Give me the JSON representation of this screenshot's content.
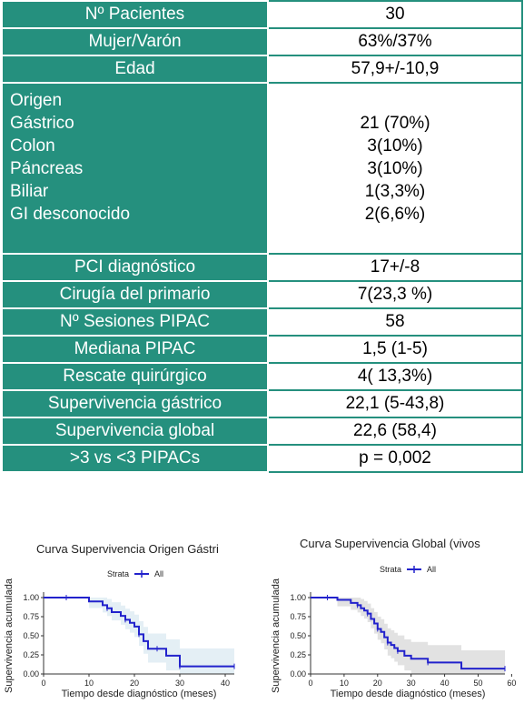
{
  "table": {
    "rows": [
      {
        "label": "Nº Pacientes",
        "value": "30"
      },
      {
        "label": "Mujer/Varón",
        "value": "63%/37%"
      },
      {
        "label": "Edad",
        "value": "57,9+/-10,9"
      }
    ],
    "origin": {
      "labels": [
        "Origen",
        "Gástrico",
        "Colon",
        "Páncreas",
        "Biliar",
        "GI desconocido"
      ],
      "values": [
        "",
        "21 (70%)",
        "3(10%)",
        "3(10%)",
        "1(3,3%)",
        "2(6,6%)"
      ]
    },
    "rows2": [
      {
        "label": "PCI diagnóstico",
        "value": "17+/-8"
      },
      {
        "label": "Cirugía del primario",
        "value": "7(23,3 %)"
      },
      {
        "label": "Nº Sesiones PIPAC",
        "value": "58"
      },
      {
        "label": "Mediana PIPAC",
        "value": "1,5 (1-5)"
      },
      {
        "label": "Rescate quirúrgico",
        "value": "4( 13,3%)"
      },
      {
        "label": "Supervivencia gástrico",
        "value": "22,1 (5-43,8)"
      },
      {
        "label": "Supervivencia global",
        "value": "22,6 (58,4)"
      },
      {
        "label": ">3 vs <3 PIPACs",
        "value": "p = 0,002"
      }
    ]
  },
  "chart_data": [
    {
      "type": "line",
      "title": "Curva Supervivencia Origen Gástri",
      "xlabel": "Tiempo desde diagnóstico (meses)",
      "ylabel": "Supervivencia acumulada",
      "legend_title": "Strata",
      "series": [
        {
          "name": "All",
          "x": [
            0,
            5,
            10,
            13,
            14,
            15,
            17,
            18,
            19,
            20,
            21,
            22,
            23,
            25,
            27,
            29,
            30,
            42
          ],
          "y": [
            1.0,
            1.0,
            0.95,
            0.9,
            0.86,
            0.81,
            0.76,
            0.71,
            0.67,
            0.62,
            0.52,
            0.43,
            0.33,
            0.33,
            0.24,
            0.24,
            0.1,
            0.1
          ]
        }
      ],
      "color": "#2222cc",
      "xlim": [
        0,
        42
      ],
      "ylim": [
        0,
        1
      ],
      "xticks": [
        "0",
        "10",
        "20",
        "30",
        "40"
      ],
      "yticks": [
        "0.00",
        "0.25",
        "0.50",
        "0.75",
        "1.00"
      ]
    },
    {
      "type": "line",
      "title": "Curva Supervivencia Global (vivos",
      "xlabel": "Tiempo desde diagnóstico (meses)",
      "ylabel": "Supervivencia acumulada",
      "legend_title": "Strata",
      "series": [
        {
          "name": "All",
          "x": [
            0,
            5,
            8,
            12,
            14,
            15,
            16,
            17,
            18,
            19,
            20,
            21,
            22,
            23,
            24,
            25,
            26,
            28,
            30,
            35,
            40,
            45,
            58
          ],
          "y": [
            1.0,
            1.0,
            0.97,
            0.93,
            0.9,
            0.86,
            0.83,
            0.79,
            0.72,
            0.66,
            0.59,
            0.55,
            0.48,
            0.41,
            0.38,
            0.34,
            0.3,
            0.24,
            0.2,
            0.15,
            0.15,
            0.07,
            0.07
          ]
        }
      ],
      "color": "#2222cc",
      "xlim": [
        0,
        58
      ],
      "ylim": [
        0,
        1
      ],
      "xticks": [
        "0",
        "10",
        "20",
        "30",
        "40",
        "50",
        "60"
      ],
      "yticks": [
        "0.00",
        "0.25",
        "0.50",
        "0.75",
        "1.00"
      ]
    }
  ]
}
